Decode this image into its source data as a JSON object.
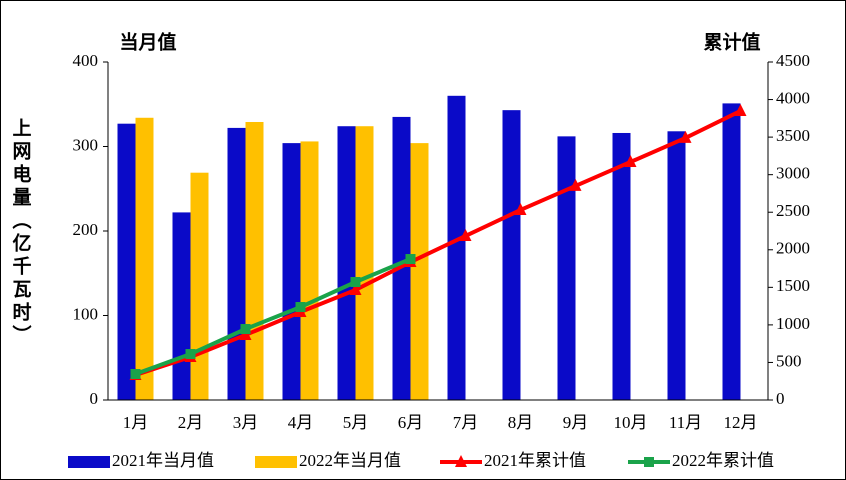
{
  "chart_data": {
    "type": "bar-line",
    "y_label": "上网电量（亿千瓦时）",
    "y_title": "当月值",
    "y2_title": "累计值",
    "categories": [
      "1月",
      "2月",
      "3月",
      "4月",
      "5月",
      "6月",
      "7月",
      "8月",
      "9月",
      "10月",
      "11月",
      "12月"
    ],
    "series": [
      {
        "name": "2021年当月值",
        "type": "bar",
        "color": "#0a0ac8",
        "values": [
          327,
          222,
          322,
          304,
          324,
          335,
          360,
          343,
          312,
          316,
          318,
          351
        ]
      },
      {
        "name": "2022年当月值",
        "type": "bar",
        "color": "#ffc000",
        "values": [
          334,
          269,
          329,
          306,
          324,
          304,
          null,
          null,
          null,
          null,
          null,
          null
        ]
      },
      {
        "name": "2021年累计值",
        "type": "line",
        "axis": "y2",
        "color": "#ff0000",
        "marker": "triangle",
        "values": [
          333,
          573,
          866,
          1172,
          1465,
          1837,
          2184,
          2530,
          2850,
          3169,
          3489,
          3848
        ]
      },
      {
        "name": "2022年累计值",
        "type": "line",
        "axis": "y2",
        "color": "#1aa34a",
        "marker": "square",
        "values": [
          346,
          612,
          945,
          1238,
          1571,
          1877,
          null,
          null,
          null,
          null,
          null,
          null
        ]
      }
    ],
    "ylim": [
      0,
      400
    ],
    "yticks": [
      0,
      100,
      200,
      300,
      400
    ],
    "y2lim": [
      0,
      4500
    ],
    "y2ticks": [
      0,
      500,
      1000,
      1500,
      2000,
      2500,
      3000,
      3500,
      4000,
      4500
    ]
  }
}
